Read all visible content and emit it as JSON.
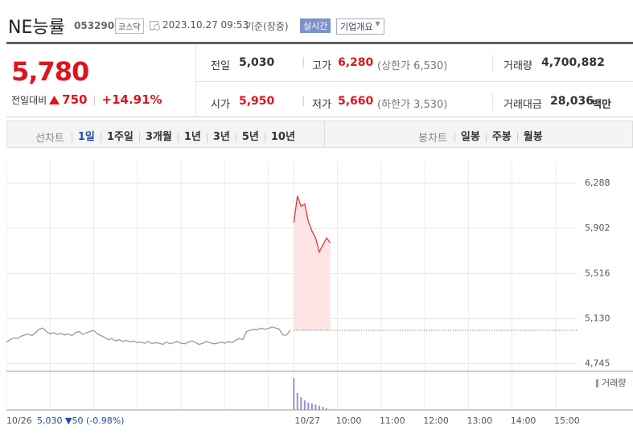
{
  "header": {
    "name": "NE능률",
    "code": "053290",
    "market": "코스닥",
    "timestamp": "2023.10.27 09:53",
    "basis": "기준(장중)",
    "realtime": "실시간",
    "company_info": "기업개요"
  },
  "summary": {
    "price": "5,780",
    "change_label": "전일대비",
    "change": "750",
    "change_pct": "+14.91%",
    "fields": [
      {
        "label": "전일",
        "value": "5,030"
      },
      {
        "label": "고가",
        "value": "6,280",
        "note": "(상한가 6,530)"
      },
      {
        "label": "거래량",
        "value": "4,700,882"
      },
      {
        "label": "시가",
        "value": "5,950"
      },
      {
        "label": "저가",
        "value": "5,660",
        "note": "(하한가 3,530)"
      },
      {
        "label": "거래대금",
        "value": "28,036",
        "unit": "백만"
      }
    ]
  },
  "tabs": {
    "line_label": "선차트",
    "line": [
      "1일",
      "1주일",
      "3개월",
      "1년",
      "3년",
      "5년",
      "10년"
    ],
    "candle_label": "봉차트",
    "candle": [
      "일봉",
      "주봉",
      "월봉"
    ]
  },
  "chart_data": {
    "type": "line",
    "categories": [
      "10/26",
      null,
      null,
      null,
      null,
      null,
      null,
      null,
      null,
      null,
      null,
      null,
      null,
      null,
      null,
      null,
      null,
      null,
      null,
      null,
      null,
      null,
      null,
      null,
      null,
      null,
      null,
      null,
      null,
      null,
      null,
      null,
      null,
      null,
      null,
      null,
      null,
      null,
      null,
      null,
      null,
      null,
      null,
      null,
      null,
      null,
      null,
      null,
      null,
      null,
      null,
      null,
      null,
      null,
      null,
      null,
      null,
      null,
      null,
      null,
      null,
      null,
      null,
      null,
      null,
      null,
      null,
      null,
      null,
      null,
      null,
      null,
      null,
      null,
      null,
      null,
      null,
      null,
      null,
      "10/27",
      null,
      null,
      null,
      null,
      null,
      null,
      null,
      null,
      null,
      null,
      null,
      "10:00",
      null,
      null,
      null,
      null,
      null,
      null,
      null,
      null,
      null,
      null,
      null,
      "11:00",
      null,
      null,
      null,
      null,
      null,
      null,
      null,
      null,
      null,
      null,
      null,
      "12:00",
      null,
      null,
      null,
      null,
      null,
      null,
      null,
      null,
      null,
      null,
      null,
      "13:00",
      null,
      null,
      null,
      null,
      null,
      null,
      null,
      null,
      null,
      null,
      null,
      "14:00",
      null,
      null,
      null,
      null,
      null,
      null,
      null,
      null,
      null,
      null,
      null,
      "15:00",
      null,
      null,
      null,
      null,
      null,
      null
    ],
    "series": [
      {
        "color": "#9a9a9a",
        "values": [
          4930,
          4950,
          4965,
          4960,
          4980,
          4990,
          5000,
          4985,
          5010,
          5040,
          5050,
          5020,
          5000,
          5010,
          4995,
          5005,
          4990,
          5000,
          4985,
          5010,
          5020,
          4995,
          5010,
          5020,
          5030,
          5000,
          4985,
          4970,
          4950,
          4960,
          4940,
          4950,
          4935,
          4945,
          4930,
          4940,
          4925,
          4930,
          4920,
          4935,
          4915,
          4925,
          4920,
          4910,
          4930,
          4915,
          4925,
          4935,
          4920,
          4915,
          4930,
          4940,
          4925,
          4910,
          4920,
          4935,
          4925,
          4915,
          4920,
          4930,
          4920,
          4935,
          4925,
          4945,
          4960,
          4950,
          5020,
          5030,
          5040,
          5035,
          5050,
          5040,
          5045,
          5060,
          5050,
          5040,
          4990,
          4990,
          5030,
          null,
          null,
          null,
          null,
          null,
          null,
          null,
          null,
          null,
          null,
          null,
          null,
          null,
          null,
          null,
          null,
          null,
          null,
          null,
          null,
          null,
          null,
          null,
          null,
          null,
          null,
          null,
          null,
          null,
          null,
          null,
          null,
          null,
          null,
          null,
          null,
          null,
          null,
          null,
          null,
          null,
          null,
          null,
          null,
          null,
          null,
          null,
          null,
          null,
          null,
          null,
          null,
          null,
          null,
          null,
          null,
          null,
          null,
          null,
          null,
          null,
          null,
          null,
          null,
          null,
          null,
          null,
          null,
          null,
          null,
          null,
          null,
          null,
          null,
          null,
          null,
          null,
          null,
          null
        ]
      },
      {
        "color": "#e8323c",
        "fill_color": "#fde4e4",
        "values": [
          null,
          null,
          null,
          null,
          null,
          null,
          null,
          null,
          null,
          null,
          null,
          null,
          null,
          null,
          null,
          null,
          null,
          null,
          null,
          null,
          null,
          null,
          null,
          null,
          null,
          null,
          null,
          null,
          null,
          null,
          null,
          null,
          null,
          null,
          null,
          null,
          null,
          null,
          null,
          null,
          null,
          null,
          null,
          null,
          null,
          null,
          null,
          null,
          null,
          null,
          null,
          null,
          null,
          null,
          null,
          null,
          null,
          null,
          null,
          null,
          null,
          null,
          null,
          null,
          null,
          null,
          null,
          null,
          null,
          null,
          null,
          null,
          null,
          null,
          null,
          null,
          null,
          null,
          null,
          5950,
          6180,
          6090,
          6110,
          5960,
          5880,
          5820,
          5700,
          5760,
          5820,
          5780,
          null,
          null,
          null,
          null,
          null,
          null,
          null,
          null,
          null,
          null,
          null,
          null,
          null,
          null,
          null,
          null,
          null,
          null,
          null,
          null,
          null,
          null,
          null,
          null,
          null,
          null,
          null,
          null,
          null,
          null,
          null,
          null,
          null,
          null,
          null,
          null,
          null,
          null,
          null,
          null,
          null,
          null,
          null,
          null,
          null,
          null,
          null,
          null,
          null,
          null,
          null,
          null,
          null,
          null,
          null,
          null,
          null,
          null,
          null,
          null,
          null,
          null,
          null,
          null,
          null,
          null,
          null,
          null
        ]
      },
      {
        "name": "거래량",
        "color": "#9d8fcb",
        "axis": "y2",
        "values": [
          null,
          null,
          null,
          null,
          null,
          null,
          null,
          null,
          null,
          null,
          null,
          null,
          null,
          null,
          null,
          null,
          null,
          null,
          null,
          null,
          null,
          null,
          null,
          null,
          null,
          null,
          null,
          null,
          null,
          null,
          null,
          null,
          null,
          null,
          null,
          null,
          null,
          null,
          null,
          null,
          null,
          null,
          null,
          null,
          null,
          null,
          null,
          null,
          null,
          null,
          null,
          null,
          null,
          null,
          null,
          null,
          null,
          null,
          null,
          null,
          null,
          null,
          null,
          null,
          null,
          null,
          null,
          null,
          null,
          null,
          null,
          null,
          null,
          null,
          null,
          null,
          null,
          null,
          null,
          1500000,
          800000,
          600000,
          450000,
          350000,
          300000,
          250000,
          200000,
          150000,
          70000,
          30000,
          null,
          null,
          null,
          null,
          null,
          null,
          null,
          null,
          null,
          null,
          null,
          null,
          null,
          null,
          null,
          null,
          null,
          null,
          null,
          null,
          null,
          null,
          null,
          null,
          null,
          null,
          null,
          null,
          null,
          null,
          null,
          null,
          null,
          null,
          null,
          null,
          null,
          null,
          null,
          null,
          null,
          null,
          null,
          null,
          null,
          null,
          null,
          null,
          null,
          null,
          null,
          null,
          null,
          null,
          null,
          null,
          null,
          null,
          null,
          null,
          null,
          null,
          null,
          null,
          null,
          null,
          null,
          null
        ]
      }
    ],
    "reference_line": 5030,
    "ylim": [
      4680,
      6480
    ],
    "yticks": [
      {
        "value": 6288,
        "label": "6,288"
      },
      {
        "value": 5902,
        "label": "5,902"
      },
      {
        "value": 5516,
        "label": "5,516"
      },
      {
        "value": 5130,
        "label": "5,130"
      },
      {
        "value": 4745,
        "label": "4,745"
      }
    ],
    "y2lim": [
      0,
      1600000
    ],
    "grid": true,
    "footer_note": "5,030 ▼50 (-0.98%)"
  }
}
